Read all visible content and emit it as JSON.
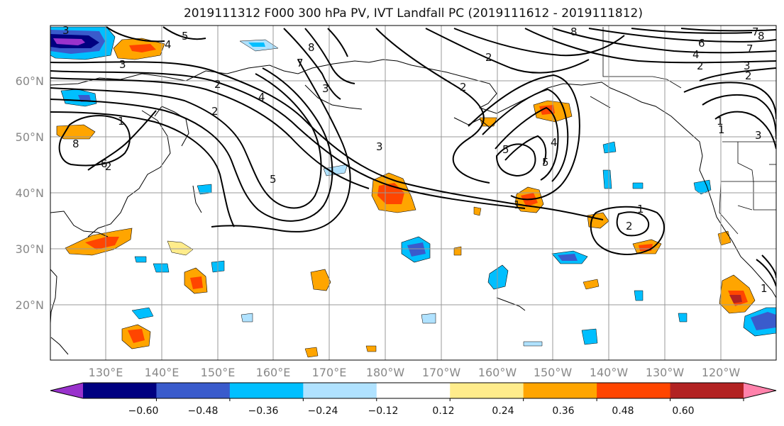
{
  "title": "2019111312 F000 300 hPa PV, IVT Landfall PC (2019111612 - 2019111812)",
  "lat_labels": [
    "60°N",
    "50°N",
    "40°N",
    "30°N",
    "20°N"
  ],
  "lon_labels": [
    "130°E",
    "140°E",
    "150°E",
    "160°E",
    "170°E",
    "180°W",
    "170°W",
    "160°W",
    "150°W",
    "140°W",
    "130°W",
    "120°W"
  ],
  "colorbar": {
    "ticks": [
      "−0.60",
      "−0.48",
      "−0.36",
      "−0.24",
      "−0.12",
      "0.12",
      "0.24",
      "0.36",
      "0.48",
      "0.60"
    ],
    "colors": [
      "#9932cc",
      "#000080",
      "#3a5bcc",
      "#00bfff",
      "#b0e2ff",
      "#ffffff",
      "#ffec8b",
      "#ffa500",
      "#ff4500",
      "#b22222",
      "#ff82ab"
    ]
  },
  "contour_labels": [
    "3",
    "5",
    "4",
    "3",
    "8",
    "2",
    "3",
    "4",
    "8",
    "2",
    "1",
    "2",
    "5",
    "3",
    "2",
    "8",
    "6",
    "7",
    "4",
    "2",
    "3",
    "7",
    "8",
    "1",
    "6",
    "5",
    "4",
    "5",
    "1",
    "7",
    "2",
    "1",
    "2",
    "1",
    "2",
    "1",
    "3"
  ]
}
